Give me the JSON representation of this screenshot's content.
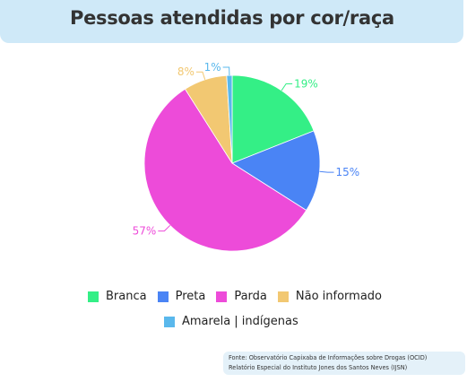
{
  "title": "Pessoas atendidas por cor/raça",
  "chart_data": {
    "type": "pie",
    "title": "Pessoas atendidas por cor/raça",
    "slices": [
      {
        "name": "Branca",
        "value": 19,
        "label": "19%",
        "color": "#34ef86"
      },
      {
        "name": "Preta",
        "value": 15,
        "label": "15%",
        "color": "#4a84f5"
      },
      {
        "name": "Parda",
        "value": 57,
        "label": "57%",
        "color": "#ed4bd9"
      },
      {
        "name": "Não informado",
        "value": 8,
        "label": "8%",
        "color": "#f2c872"
      },
      {
        "name": "Amarela | indígenas",
        "value": 1,
        "label": "1%",
        "color": "#5ab8ec"
      }
    ],
    "legend_placement": "bottom"
  },
  "source": {
    "line1": "Fonte: Observatório Capixaba de Informações sobre Drogas (OCID)",
    "line2": "Relatório Especial do Instituto Jones dos Santos Neves (IJSN)"
  }
}
